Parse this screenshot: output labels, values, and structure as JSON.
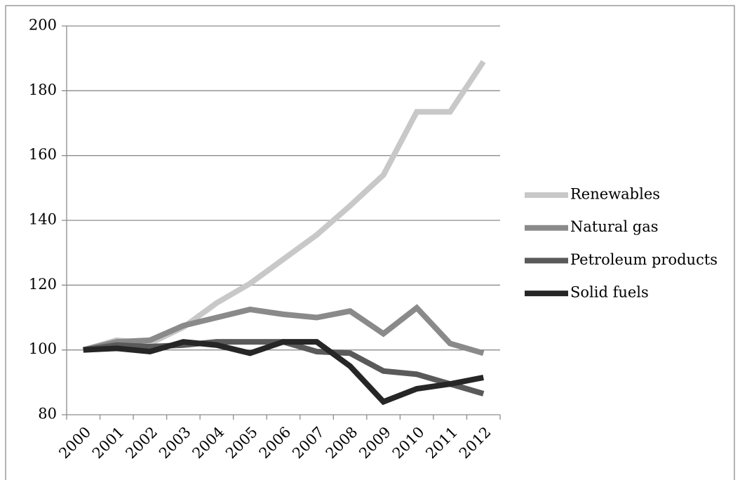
{
  "chart_data": {
    "type": "line",
    "categories": [
      "2000",
      "2001",
      "2002",
      "2003",
      "2004",
      "2005",
      "2006",
      "2007",
      "2008",
      "2009",
      "2010",
      "2011",
      "2012"
    ],
    "series": [
      {
        "name": "Renewables",
        "color": "#c8c8c8",
        "values": [
          100,
          103,
          102,
          107,
          114.5,
          120.5,
          128,
          135.5,
          144.5,
          154,
          173.5,
          173.5,
          189
        ]
      },
      {
        "name": "Natural gas",
        "color": "#8a8a8a",
        "values": [
          100,
          102.5,
          103,
          107.5,
          110,
          112.5,
          111,
          110,
          112,
          105,
          113,
          102,
          99
        ]
      },
      {
        "name": "Petroleum products",
        "color": "#5a5a5a",
        "values": [
          100,
          101.5,
          101,
          101.5,
          102.5,
          102.5,
          102.5,
          99.5,
          99,
          93.5,
          92.5,
          89.5,
          86.5
        ]
      },
      {
        "name": "Solid fuels",
        "color": "#262626",
        "values": [
          100,
          100.5,
          99.5,
          102.5,
          101.5,
          99,
          102.5,
          102.5,
          95,
          84,
          88,
          89.5,
          91.5
        ]
      }
    ],
    "ylim": [
      80,
      200
    ],
    "yticks": [
      80,
      100,
      120,
      140,
      160,
      180,
      200
    ],
    "grid": true,
    "legend": "right"
  }
}
